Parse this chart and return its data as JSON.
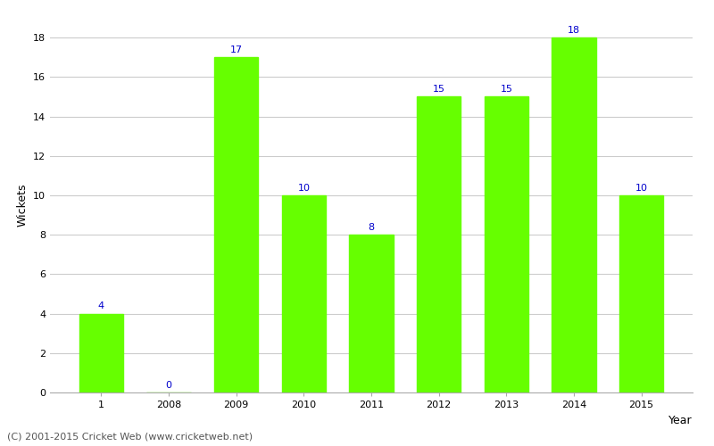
{
  "categories": [
    "1",
    "2008",
    "2009",
    "2010",
    "2011",
    "2012",
    "2013",
    "2014",
    "2015"
  ],
  "values": [
    4,
    0,
    17,
    10,
    8,
    15,
    15,
    18,
    10
  ],
  "bar_color": "#66ff00",
  "bar_edgecolor": "#66ff00",
  "xlabel": "Year",
  "ylabel": "Wickets",
  "ylim": [
    0,
    19
  ],
  "yticks": [
    0,
    2,
    4,
    6,
    8,
    10,
    12,
    14,
    16,
    18
  ],
  "label_color": "#0000cc",
  "label_fontsize": 8,
  "axis_fontsize": 9,
  "tick_fontsize": 8,
  "footer_text": "(C) 2001-2015 Cricket Web (www.cricketweb.net)",
  "footer_fontsize": 8,
  "background_color": "#ffffff",
  "grid_color": "#cccccc"
}
